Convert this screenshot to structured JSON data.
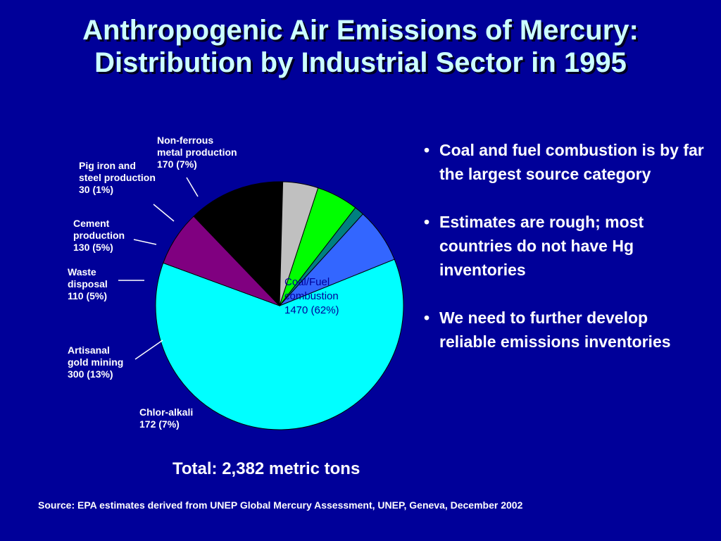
{
  "title": {
    "line1": "Anthropogenic Air Emissions of Mercury:",
    "line2": "Distribution by Industrial Sector in 1995"
  },
  "chart_data": {
    "type": "pie",
    "title": "Anthropogenic Air Emissions of Mercury: Distribution by Industrial Sector in 1995",
    "slices": [
      {
        "key": "coal",
        "label_lines": [
          "Coal/Fuel",
          "combustion",
          "1470 (62%)"
        ],
        "value": 1470,
        "percent": 62,
        "color": "#00ffff"
      },
      {
        "key": "chlor",
        "label_lines": [
          "Chlor-alkali",
          "172 (7%)"
        ],
        "value": 172,
        "percent": 7,
        "color": "#800080"
      },
      {
        "key": "artisanal",
        "label_lines": [
          "Artisanal",
          "gold mining",
          "300 (13%)"
        ],
        "value": 300,
        "percent": 13,
        "color": "#000000"
      },
      {
        "key": "waste",
        "label_lines": [
          "Waste",
          "disposal",
          "110 (5%)"
        ],
        "value": 110,
        "percent": 5,
        "color": "#c0c0c0"
      },
      {
        "key": "cement",
        "label_lines": [
          "Cement",
          "production",
          "130 (5%)"
        ],
        "value": 130,
        "percent": 5,
        "color": "#00ff00"
      },
      {
        "key": "pigiron",
        "label_lines": [
          "Pig iron and",
          "steel production",
          "30 (1%)"
        ],
        "value": 30,
        "percent": 1,
        "color": "#008080"
      },
      {
        "key": "nonferrous",
        "label_lines": [
          "Non-ferrous",
          "metal production",
          "170 (7%)"
        ],
        "value": 170,
        "percent": 7,
        "color": "#3366ff"
      }
    ]
  },
  "bullets": [
    "Coal and fuel combustion is by far the largest source category",
    "Estimates are rough; most countries do not have Hg inventories",
    "We need to further develop reliable emissions inventories"
  ],
  "total": "Total: 2,382 metric tons",
  "source": "Source:  EPA estimates derived from UNEP Global Mercury Assessment, UNEP, Geneva, December 2002"
}
